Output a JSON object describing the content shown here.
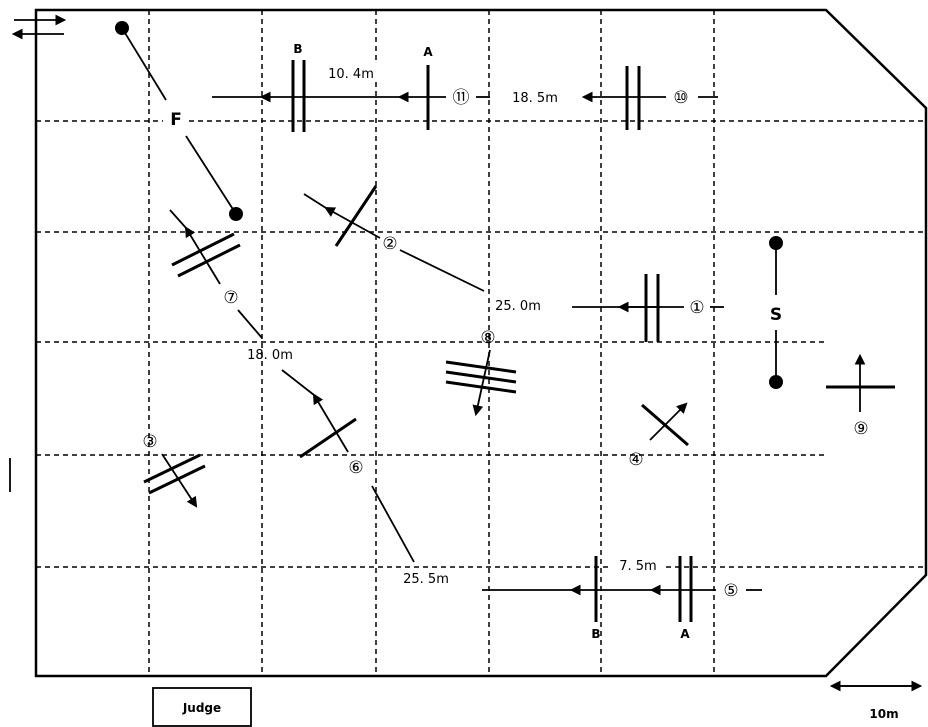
{
  "labels": {
    "start": "S",
    "finish": "F",
    "judge": "Judge",
    "scale": "10m",
    "dist_10_4": "10. 4m",
    "dist_18_5": "18. 5m",
    "dist_25_0": "25. 0m",
    "dist_18_0": "18. 0m",
    "dist_25_5": "25. 5m",
    "dist_7_5": "7. 5m",
    "a_top": "A",
    "b_top": "B",
    "a_bottom": "A",
    "b_bottom": "B"
  },
  "obstacles": {
    "o1": "①",
    "o2": "②",
    "o3": "③",
    "o4": "④",
    "o5": "⑤",
    "o6": "⑥",
    "o7": "⑦",
    "o8": "⑧",
    "o9": "⑨",
    "o10": "⑩",
    "o11": "⑪"
  }
}
